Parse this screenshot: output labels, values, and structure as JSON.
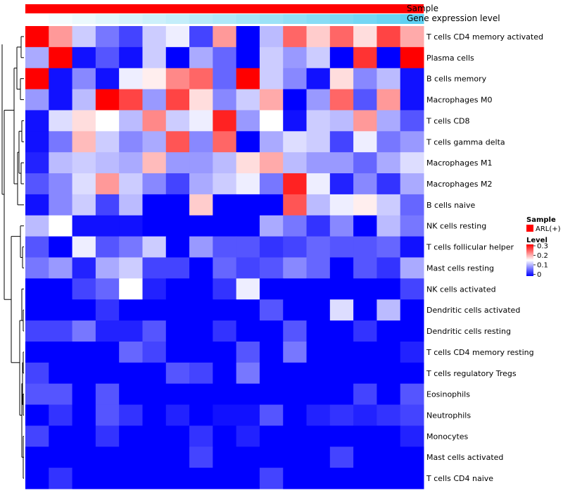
{
  "chart_data": {
    "type": "heatmap",
    "annotations": [
      {
        "label": "Sample",
        "color": "#FF0000"
      },
      {
        "label": "Gene expression level",
        "gradient": [
          "#FFFFFF",
          "#5FD0F2"
        ]
      }
    ],
    "rows": [
      "T cells CD4 memory activated",
      "Plasma cells",
      "B cells memory",
      "Macrophages M0",
      "T cells CD8",
      "T cells gamma delta",
      "Macrophages M1",
      "Macrophages M2",
      "B cells naive",
      "NK cells resting",
      "T cells follicular helper",
      "Mast cells resting",
      "NK cells activated",
      "Dendritic cells activated",
      "Dendritic cells resting",
      "T cells CD4 memory resting",
      "T cells regulatory  Tregs",
      "Eosinophils",
      "Neutrophils",
      "Monocytes",
      "Mast cells activated",
      "T cells CD4 naive"
    ],
    "values": [
      [
        0.3,
        0.21,
        0.12,
        0.07,
        0.04,
        0.12,
        0.14,
        0.04,
        0.21,
        0.0,
        0.11,
        0.24,
        0.18,
        0.24,
        0.17,
        0.26,
        0.2
      ],
      [
        0.1,
        0.3,
        0.01,
        0.05,
        0.01,
        0.12,
        0.0,
        0.1,
        0.06,
        0.0,
        0.12,
        0.09,
        0.12,
        0.0,
        0.27,
        0.0,
        0.3
      ],
      [
        0.3,
        0.01,
        0.08,
        0.01,
        0.14,
        0.16,
        0.22,
        0.24,
        0.06,
        0.3,
        0.12,
        0.08,
        0.01,
        0.17,
        0.08,
        0.11,
        0.01
      ],
      [
        0.09,
        0.01,
        0.11,
        0.3,
        0.26,
        0.09,
        0.26,
        0.17,
        0.08,
        0.12,
        0.2,
        0.0,
        0.09,
        0.24,
        0.05,
        0.21,
        0.01
      ],
      [
        0.01,
        0.13,
        0.17,
        0.15,
        0.11,
        0.22,
        0.12,
        0.14,
        0.28,
        0.09,
        0.15,
        0.01,
        0.12,
        0.11,
        0.21,
        0.1,
        0.05
      ],
      [
        0.01,
        0.07,
        0.19,
        0.12,
        0.08,
        0.1,
        0.25,
        0.08,
        0.24,
        0.0,
        0.1,
        0.13,
        0.12,
        0.04,
        0.14,
        0.07,
        0.09
      ],
      [
        0.02,
        0.11,
        0.12,
        0.11,
        0.1,
        0.19,
        0.09,
        0.09,
        0.11,
        0.17,
        0.2,
        0.11,
        0.09,
        0.09,
        0.06,
        0.1,
        0.13
      ],
      [
        0.05,
        0.08,
        0.13,
        0.21,
        0.12,
        0.08,
        0.04,
        0.1,
        0.12,
        0.14,
        0.07,
        0.28,
        0.14,
        0.02,
        0.08,
        0.03,
        0.1
      ],
      [
        0.01,
        0.08,
        0.12,
        0.04,
        0.11,
        0.0,
        0.0,
        0.18,
        0.0,
        0.0,
        0.0,
        0.25,
        0.11,
        0.14,
        0.16,
        0.12,
        0.06
      ],
      [
        0.11,
        0.15,
        0.01,
        0.01,
        0.01,
        0.0,
        0.0,
        0.0,
        0.0,
        0.0,
        0.1,
        0.07,
        0.03,
        0.08,
        0.0,
        0.11,
        0.07
      ],
      [
        0.05,
        0.0,
        0.14,
        0.05,
        0.07,
        0.12,
        0.0,
        0.09,
        0.05,
        0.05,
        0.03,
        0.04,
        0.06,
        0.05,
        0.05,
        0.06,
        0.01
      ],
      [
        0.07,
        0.09,
        0.02,
        0.1,
        0.12,
        0.04,
        0.04,
        0.0,
        0.06,
        0.04,
        0.05,
        0.08,
        0.06,
        0.0,
        0.05,
        0.03,
        0.1
      ],
      [
        0.0,
        0.0,
        0.04,
        0.06,
        0.15,
        0.02,
        0.0,
        0.0,
        0.03,
        0.14,
        0.0,
        0.0,
        0.0,
        0.0,
        0.0,
        0.0,
        0.04
      ],
      [
        0.0,
        0.0,
        0.0,
        0.03,
        0.0,
        0.0,
        0.0,
        0.0,
        0.0,
        0.0,
        0.05,
        0.0,
        0.0,
        0.13,
        0.0,
        0.11,
        0.0
      ],
      [
        0.04,
        0.04,
        0.07,
        0.02,
        0.02,
        0.05,
        0.0,
        0.0,
        0.03,
        0.0,
        0.0,
        0.05,
        0.0,
        0.0,
        0.03,
        0.0,
        0.0
      ],
      [
        0.0,
        0.0,
        0.0,
        0.0,
        0.06,
        0.04,
        0.0,
        0.0,
        0.0,
        0.05,
        0.0,
        0.07,
        0.0,
        0.0,
        0.0,
        0.0,
        0.02
      ],
      [
        0.04,
        0.0,
        0.0,
        0.0,
        0.0,
        0.0,
        0.05,
        0.04,
        0.0,
        0.07,
        0.0,
        0.0,
        0.0,
        0.0,
        0.0,
        0.0,
        0.0
      ],
      [
        0.05,
        0.05,
        0.0,
        0.05,
        0.0,
        0.0,
        0.0,
        0.0,
        0.0,
        0.0,
        0.0,
        0.0,
        0.0,
        0.0,
        0.04,
        0.0,
        0.05
      ],
      [
        0.0,
        0.03,
        0.0,
        0.05,
        0.03,
        0.0,
        0.02,
        0.0,
        0.01,
        0.01,
        0.05,
        0.0,
        0.02,
        0.03,
        0.02,
        0.03,
        0.04
      ],
      [
        0.04,
        0.0,
        0.0,
        0.03,
        0.0,
        0.0,
        0.0,
        0.03,
        0.0,
        0.02,
        0.0,
        0.0,
        0.0,
        0.0,
        0.0,
        0.0,
        0.02
      ],
      [
        0.0,
        0.0,
        0.0,
        0.0,
        0.0,
        0.0,
        0.0,
        0.04,
        0.0,
        0.0,
        0.0,
        0.0,
        0.0,
        0.04,
        0.0,
        0.0,
        0.0
      ],
      [
        0.0,
        0.03,
        0.0,
        0.0,
        0.0,
        0.0,
        0.0,
        0.0,
        0.0,
        0.0,
        0.04,
        0.0,
        0.0,
        0.0,
        0.0,
        0.0,
        0.0
      ]
    ],
    "gene_expression_levels": [
      0.0,
      0.06,
      0.12,
      0.19,
      0.25,
      0.31,
      0.37,
      0.44,
      0.5,
      0.56,
      0.62,
      0.69,
      0.75,
      0.81,
      0.87,
      0.94,
      1.0
    ],
    "color_scale": {
      "min": 0,
      "mid": 0.15,
      "max": 0.3,
      "low_color": "#0000FF",
      "mid_color": "#FFFFFF",
      "high_color": "#FF0000"
    },
    "legend": {
      "sample_title": "Sample",
      "sample_entry": "ARL(+)",
      "level_title": "Level",
      "level_ticks": [
        "0.3",
        "0.2",
        "0.1",
        "0"
      ]
    },
    "dendrogram": "rows clustered (left side)"
  }
}
